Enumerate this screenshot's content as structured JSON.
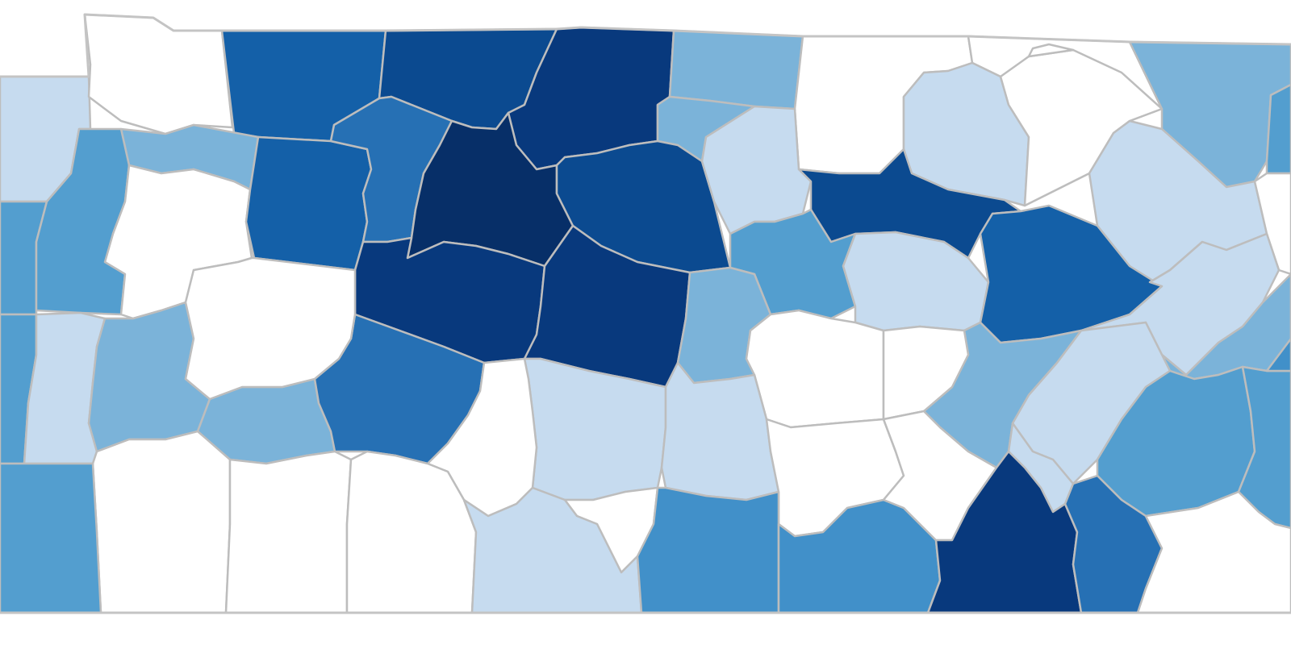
{
  "map": {
    "palette": {
      "c0": "#ffffff",
      "c1": "#c6dbef",
      "c2": "#7bb3d9",
      "c3": "#539ecf",
      "c4": "#4190c9",
      "c5": "#2670b4",
      "c6": "#1460a8",
      "c7": "#0b4a90",
      "c8": "#08397d",
      "c9": "#072f68"
    },
    "counties": [
      {
        "class": "c1"
      },
      {
        "class": "c0"
      },
      {
        "class": "c6"
      },
      {
        "class": "c7"
      },
      {
        "class": "c8"
      },
      {
        "class": "c2"
      },
      {
        "class": "c0"
      },
      {
        "class": "c0"
      },
      {
        "class": "c2"
      },
      {
        "class": "c3"
      },
      {
        "class": "c2"
      },
      {
        "class": "c2"
      },
      {
        "class": "c3"
      },
      {
        "class": "c3"
      },
      {
        "class": "c0"
      },
      {
        "class": "c6"
      },
      {
        "class": "c5"
      },
      {
        "class": "c9"
      },
      {
        "class": "c7"
      },
      {
        "class": "c1"
      },
      {
        "class": "c1"
      },
      {
        "class": "c7"
      },
      {
        "class": "c0"
      },
      {
        "class": "c0"
      },
      {
        "class": "c1"
      },
      {
        "class": "c0"
      },
      {
        "class": "c8"
      },
      {
        "class": "c8"
      },
      {
        "class": "c3"
      },
      {
        "class": "c2"
      },
      {
        "class": "c1"
      },
      {
        "class": "c6"
      },
      {
        "class": "c1"
      },
      {
        "class": "c2"
      },
      {
        "class": "c3"
      },
      {
        "class": "c1"
      },
      {
        "class": "c2"
      },
      {
        "class": "c2"
      },
      {
        "class": "c5"
      },
      {
        "class": "c0"
      },
      {
        "class": "c1"
      },
      {
        "class": "c0"
      },
      {
        "class": "c0"
      },
      {
        "class": "c1"
      },
      {
        "class": "c2"
      },
      {
        "class": "c0"
      },
      {
        "class": "c1"
      },
      {
        "class": "c3"
      },
      {
        "class": "c3"
      },
      {
        "class": "c1"
      },
      {
        "class": "c0"
      },
      {
        "class": "c0"
      },
      {
        "class": "c0"
      },
      {
        "class": "c0"
      },
      {
        "class": "c1"
      },
      {
        "class": "c0"
      },
      {
        "class": "c4"
      },
      {
        "class": "c4"
      },
      {
        "class": "c0"
      },
      {
        "class": "c8"
      },
      {
        "class": "c5"
      },
      {
        "class": "c0"
      },
      {
        "class": "c3"
      },
      {
        "class": "c4"
      }
    ]
  }
}
